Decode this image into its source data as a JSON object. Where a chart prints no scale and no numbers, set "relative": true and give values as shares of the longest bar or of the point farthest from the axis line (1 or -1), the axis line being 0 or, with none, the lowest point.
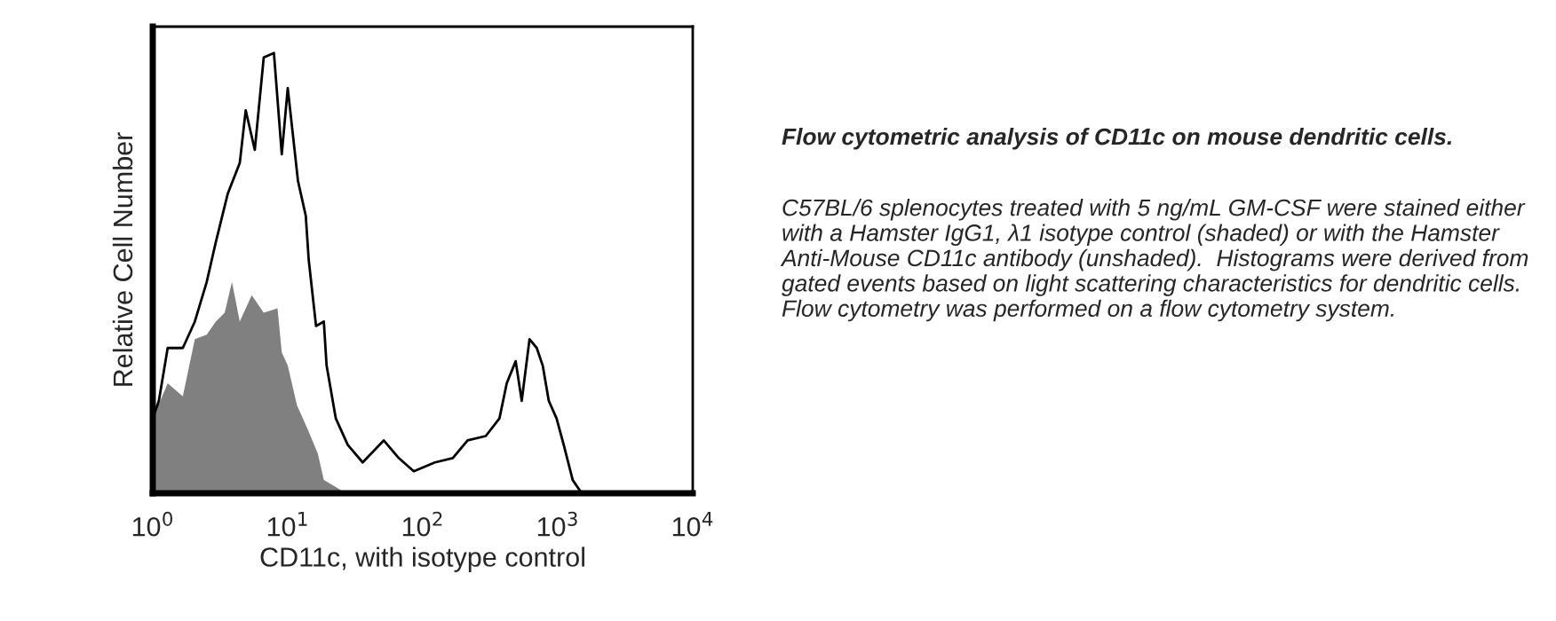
{
  "chart_data": {
    "type": "line",
    "title": "Flow cytometric analysis of CD11c on mouse dendritic cells.",
    "xlabel": "CD11c, with isotype control",
    "ylabel": "Relative Cell Number",
    "annotations": [
      "C57BL/6 splenocytes treated with 5 ng/mL GM-CSF were stained either with a Hamster IgG1, λ1 isotype control (shaded) or with the Hamster Anti-Mouse CD11c antibody (unshaded).  Histograms were derived from gated events based on light scattering characteristics for dendritic cells.  Flow cytometry was performed on a flow cytometry system."
    ],
    "log": "x",
    "relative": true,
    "grid": false,
    "legend": false,
    "xlim": [
      1,
      10000
    ],
    "xticks": [
      {
        "value": 1,
        "label": "10$^{0}$"
      },
      {
        "value": 10,
        "label": "10$^{1}$"
      },
      {
        "value": 100,
        "label": "10$^{2}$"
      },
      {
        "value": 1000,
        "label": "10$^{3}$"
      },
      {
        "value": 10000,
        "label": "10$^{4}$"
      }
    ],
    "series": [
      {
        "type": "area",
        "color": "#808080",
        "x": [
          1,
          1.29,
          1.67,
          2.05,
          2.51,
          2.93,
          3.41,
          3.86,
          4.41,
          5.41,
          6.64,
          8.4,
          9.03,
          10,
          11.7,
          14.3,
          16.7,
          18.5,
          23.9,
          26.4
        ],
        "values": [
          0.17,
          0.25,
          0.22,
          0.35,
          0.36,
          0.39,
          0.41,
          0.48,
          0.39,
          0.45,
          0.41,
          0.42,
          0.32,
          0.29,
          0.2,
          0.14,
          0.09,
          0.03,
          0.01,
          0
        ]
      },
      {
        "color": "#000000",
        "x": [
          1,
          1.11,
          1.29,
          1.67,
          2.05,
          2.51,
          2.93,
          3.59,
          4.41,
          4.88,
          5.7,
          6.64,
          7.9,
          9.03,
          10,
          11.9,
          13.6,
          14.3,
          16.2,
          18.5,
          19.4,
          22.7,
          27.8,
          35.9,
          51.4,
          66.4,
          85.8,
          123,
          167,
          215,
          293,
          370,
          419,
          488,
          541,
          618,
          699,
          774,
          858,
          980,
          1107,
          1291,
          1506,
          1754
        ],
        "values": [
          0.17,
          0.21,
          0.33,
          0.33,
          0.39,
          0.48,
          0.57,
          0.68,
          0.75,
          0.87,
          0.78,
          0.99,
          1,
          0.77,
          0.92,
          0.71,
          0.63,
          0.53,
          0.38,
          0.39,
          0.29,
          0.17,
          0.11,
          0.07,
          0.12,
          0.08,
          0.05,
          0.07,
          0.08,
          0.12,
          0.13,
          0.17,
          0.25,
          0.3,
          0.21,
          0.35,
          0.33,
          0.29,
          0.21,
          0.17,
          0.11,
          0.03,
          0,
          0
        ]
      }
    ]
  }
}
